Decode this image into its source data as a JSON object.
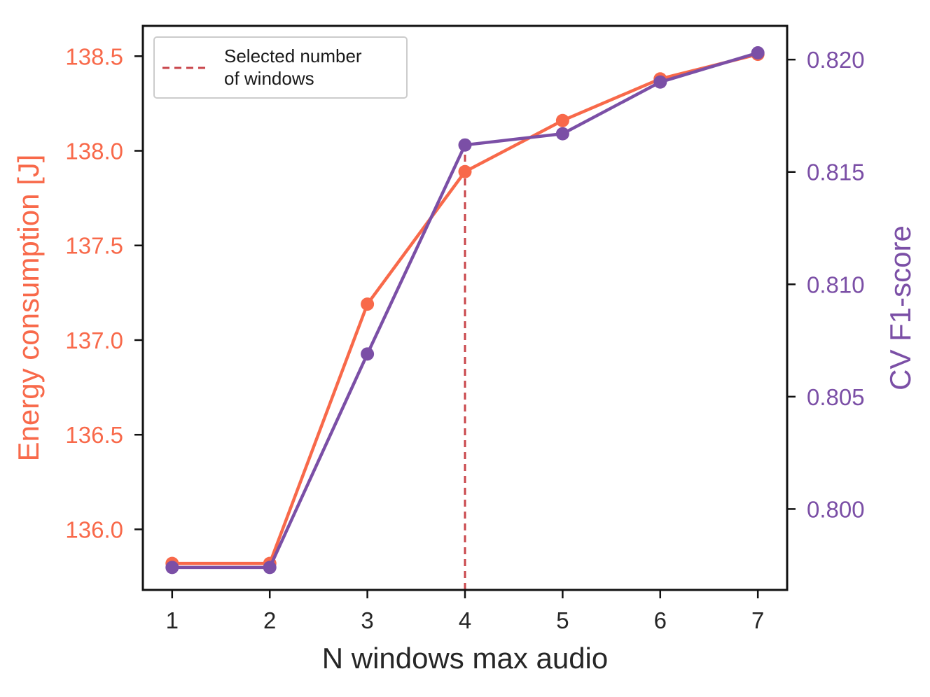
{
  "chart_data": {
    "type": "line",
    "x": [
      1,
      2,
      3,
      4,
      5,
      6,
      7
    ],
    "x_tick_labels": [
      "1",
      "2",
      "3",
      "4",
      "5",
      "6",
      "7"
    ],
    "xlabel": "N windows max audio",
    "xlim": [
      0.7,
      7.3
    ],
    "left_axis": {
      "ylabel": "Energy consumption [J]",
      "ylim": [
        135.68,
        138.66
      ],
      "ticks": [
        136.0,
        136.5,
        137.0,
        137.5,
        138.0,
        138.5
      ],
      "tick_labels": [
        "136.0",
        "136.5",
        "137.0",
        "137.5",
        "138.0",
        "138.5"
      ],
      "color": "#f8694a"
    },
    "right_axis": {
      "ylabel": "CV F1-score",
      "ylim": [
        0.7964,
        0.8215
      ],
      "ticks": [
        0.8,
        0.805,
        0.81,
        0.815,
        0.82
      ],
      "tick_labels": [
        "0.800",
        "0.805",
        "0.810",
        "0.815",
        "0.820"
      ],
      "color": "#7b4fa6"
    },
    "series": [
      {
        "axis": "left",
        "color": "#f8694a",
        "values": [
          135.82,
          135.82,
          137.19,
          137.89,
          138.16,
          138.38,
          138.51
        ]
      },
      {
        "axis": "right",
        "color": "#7b4fa6",
        "values": [
          0.7974,
          0.7974,
          0.8069,
          0.8162,
          0.8167,
          0.819,
          0.8203
        ]
      }
    ],
    "vline": {
      "x": 4,
      "label": "Selected number of windows",
      "label_lines": [
        "Selected number",
        "of windows"
      ],
      "color": "#c9464b",
      "style": "dashed"
    },
    "legend_placement": "top-left",
    "grid": false
  }
}
